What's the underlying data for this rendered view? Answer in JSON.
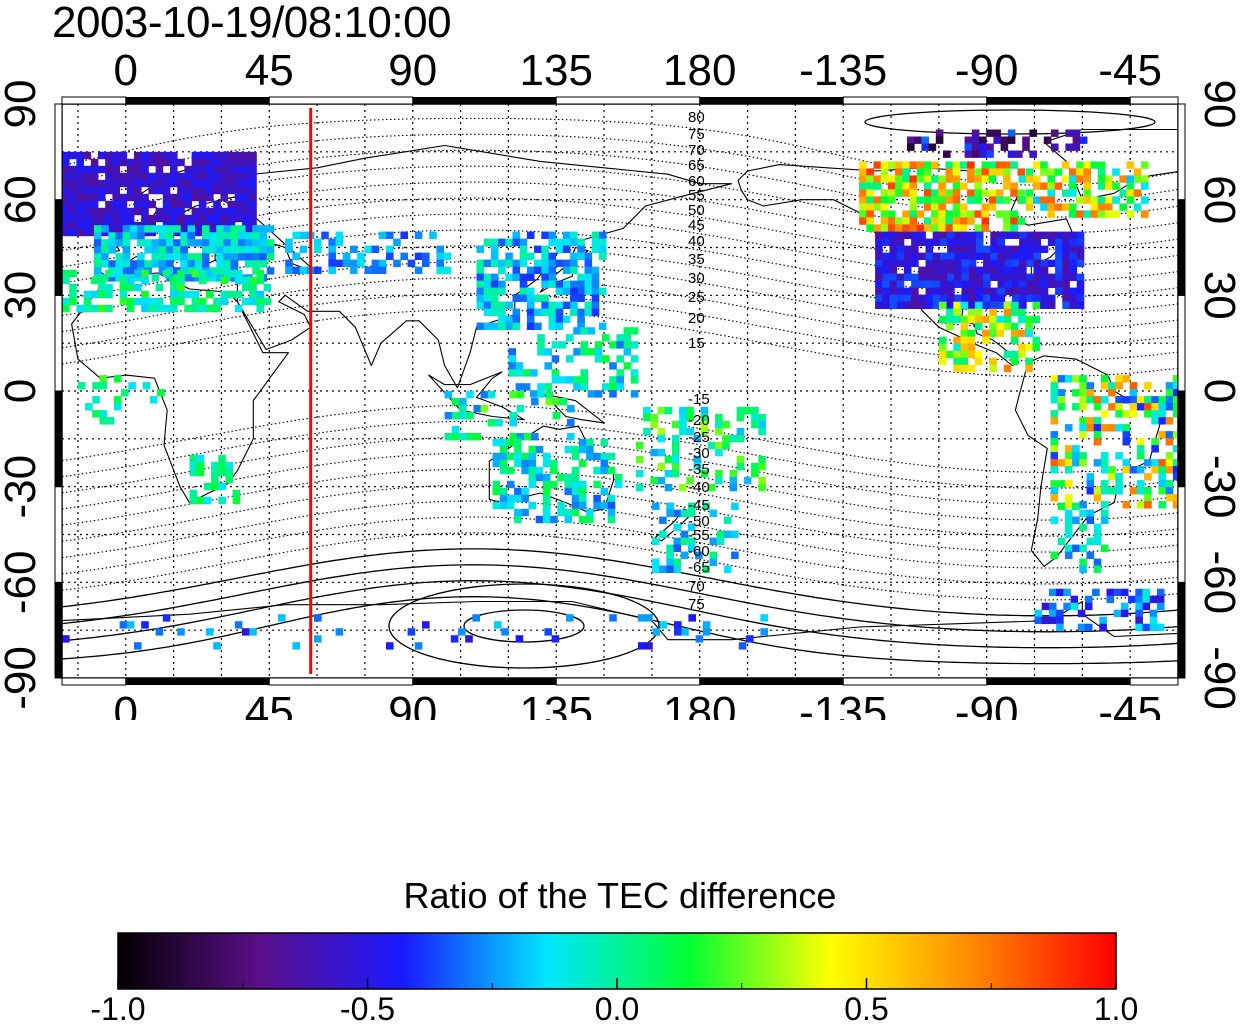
{
  "title": "2003-10-19/08:10:00",
  "map": {
    "lon_ticks": [
      "0",
      "45",
      "90",
      "135",
      "180",
      "-135",
      "-90",
      "-45"
    ],
    "lat_ticks": [
      "90",
      "60",
      "30",
      "0",
      "-30",
      "-60",
      "-90"
    ],
    "lon_range": [
      -20,
      330
    ],
    "lat_range": [
      -90,
      90
    ],
    "grid": true,
    "terminator_longitude": 58,
    "terminator_color": "#ff0000",
    "north_contour_labels": [
      "80",
      "75",
      "70",
      "65",
      "60",
      "55",
      "50",
      "45",
      "40",
      "35",
      "30",
      "25",
      "20",
      "15"
    ],
    "south_contour_labels": [
      "-15",
      "-20",
      "-25",
      "-30",
      "-35",
      "-40",
      "-45",
      "-50",
      "-55",
      "-60",
      "-65",
      "70",
      "75"
    ]
  },
  "colorbar": {
    "title": "Ratio of the TEC difference",
    "ticks": [
      "-1.0",
      "-0.5",
      "0.0",
      "0.5",
      "1.0"
    ],
    "range": [
      -1.0,
      1.0
    ],
    "colormap": [
      "#000000",
      "#5b0f8a",
      "#1a1aff",
      "#00e5ff",
      "#00ff33",
      "#ffff00",
      "#ff8800",
      "#ff0000"
    ]
  }
}
